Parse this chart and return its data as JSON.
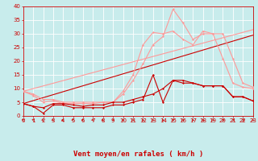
{
  "xlabel": "Vent moyen/en rafales ( km/h )",
  "ylim": [
    0,
    40
  ],
  "xlim": [
    0,
    23
  ],
  "yticks": [
    0,
    5,
    10,
    15,
    20,
    25,
    30,
    35,
    40
  ],
  "xticks": [
    0,
    1,
    2,
    3,
    4,
    5,
    6,
    7,
    8,
    9,
    10,
    11,
    12,
    13,
    14,
    15,
    16,
    17,
    18,
    19,
    20,
    21,
    22,
    23
  ],
  "bg_color": "#c8ecec",
  "grid_color": "#ffffff",
  "line1_x": [
    0,
    1,
    2,
    3,
    4,
    5,
    6,
    7,
    8,
    9,
    10,
    11,
    12,
    13,
    14,
    15,
    16,
    17,
    18,
    19,
    20,
    21,
    22,
    23
  ],
  "line1_y": [
    4.5,
    3.5,
    1.0,
    4.0,
    4.0,
    3.0,
    3.0,
    3.0,
    3.0,
    4.0,
    4.0,
    5.0,
    6.0,
    15.0,
    5.0,
    13.0,
    13.0,
    12.0,
    11.0,
    11.0,
    11.0,
    7.0,
    7.0,
    5.5
  ],
  "line1_color": "#cc0000",
  "line2_x": [
    0,
    1,
    2,
    3,
    4,
    5,
    6,
    7,
    8,
    9,
    10,
    11,
    12,
    13,
    14,
    15,
    16,
    17,
    18,
    19,
    20,
    21,
    22,
    23
  ],
  "line2_y": [
    4.5,
    3.5,
    3.0,
    4.5,
    4.5,
    4.0,
    3.5,
    4.0,
    4.0,
    5.0,
    5.0,
    6.0,
    7.0,
    8.0,
    10.0,
    13.0,
    12.0,
    12.0,
    11.0,
    11.0,
    11.0,
    7.0,
    7.0,
    5.5
  ],
  "line2_color": "#cc0000",
  "line3_x": [
    0,
    1,
    2,
    3,
    4,
    5,
    6,
    7,
    8,
    9,
    10,
    11,
    12,
    13,
    14,
    15,
    16,
    17,
    18,
    19,
    20,
    21,
    22,
    23
  ],
  "line3_y": [
    9.0,
    8.0,
    6.0,
    6.0,
    5.0,
    5.0,
    5.0,
    5.0,
    5.0,
    5.0,
    9.0,
    15.0,
    26.0,
    30.5,
    30.0,
    31.0,
    28.0,
    26.0,
    31.0,
    30.0,
    21.0,
    12.0,
    10.5,
    10.0
  ],
  "line3_color": "#ff9999",
  "line4_x": [
    0,
    1,
    2,
    3,
    4,
    5,
    6,
    7,
    8,
    9,
    10,
    11,
    12,
    13,
    14,
    15,
    16,
    17,
    18,
    19,
    20,
    21,
    22,
    23
  ],
  "line4_y": [
    9.0,
    7.5,
    5.0,
    5.5,
    4.5,
    4.5,
    4.5,
    4.5,
    5.0,
    5.0,
    8.0,
    13.0,
    19.0,
    26.0,
    29.0,
    39.0,
    34.0,
    28.0,
    30.0,
    30.0,
    30.0,
    21.0,
    12.0,
    10.5
  ],
  "line4_color": "#ff9999",
  "trend1_x": [
    0,
    23
  ],
  "trend1_y": [
    4.5,
    29.5
  ],
  "trend1_color": "#cc0000",
  "trend2_x": [
    0,
    23
  ],
  "trend2_y": [
    9.0,
    31.5
  ],
  "trend2_color": "#ff9999",
  "marker": "D",
  "markersize": 1.5,
  "linewidth": 0.8,
  "arrow_color": "#cc0000",
  "xlabel_color": "#cc0000",
  "xlabel_fontsize": 6.5,
  "tick_fontsize": 5,
  "tick_color": "#cc0000",
  "arrow_angles": [
    225,
    225,
    270,
    270,
    270,
    270,
    270,
    270,
    270,
    315,
    315,
    45,
    45,
    45,
    45,
    45,
    45,
    45,
    45,
    45,
    90,
    90,
    90,
    45
  ]
}
